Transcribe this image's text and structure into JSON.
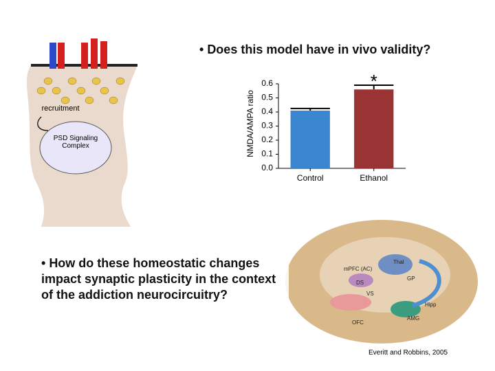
{
  "chart_data": {
    "type": "bar",
    "ylabel": "NMDA/AMPA ratio",
    "categories": [
      "Control",
      "Ethanol"
    ],
    "values": [
      0.41,
      0.56
    ],
    "errors": [
      0.015,
      0.03
    ],
    "colors": [
      "#3b86d1",
      "#9a3333"
    ],
    "annotation": "*",
    "ylim": [
      0,
      0.6
    ],
    "yticks": [
      {
        "value": 0,
        "label": "0.0"
      },
      0.1,
      0.2,
      0.3,
      0.4,
      0.5,
      0.6
    ]
  },
  "slide": {
    "bullet1": "Does this model have in vivo validity?",
    "bullet2": "How do these homeostatic changes impact synaptic plasticity in the context of the addiction neurocircuitry?",
    "citation": "Everitt and Robbins, 2005",
    "diagram": {
      "arrow_label": "recruitment",
      "complex_label": "PSD Signaling Complex"
    },
    "brain_labels": [
      "mPFC (AC)",
      "Thal",
      "GP",
      "DS",
      "VS",
      "Hipp",
      "AMG",
      "OFC"
    ]
  }
}
